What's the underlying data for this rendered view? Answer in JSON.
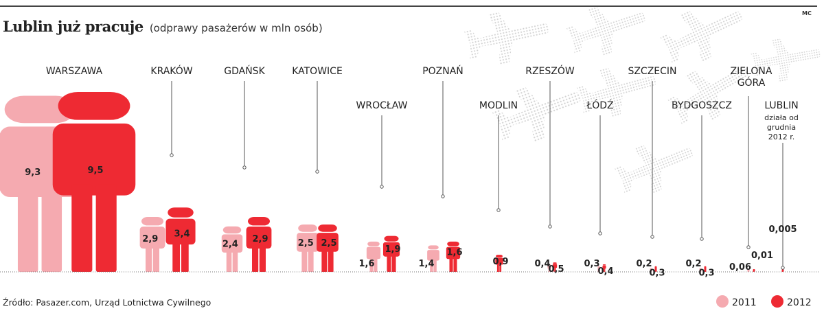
{
  "header": {
    "title": "Lublin już pracuje",
    "subtitle": "(odprawy pasażerów w mln osób)",
    "credit": "MC"
  },
  "footer": {
    "source": "Źródło: Pasazer.com, Urząd Lotnictwa Cywilnego"
  },
  "colors": {
    "y2011": "#f5aab0",
    "y2012": "#ee2a33",
    "text": "#222222",
    "dots": "#d2d2d2"
  },
  "decor": {
    "background_icon": "airplane-icon",
    "figure_icon": "person-icon"
  },
  "chart_data": {
    "type": "bar",
    "title": "Lublin już pracuje",
    "subtitle": "(odprawy pasażerów w mln osób)",
    "unit": "mln osób",
    "categories": [
      "WARSZAWA",
      "KRAKÓW",
      "GDAŃSK",
      "KATOWICE",
      "WROCŁAW",
      "POZNAŃ",
      "MODLIN",
      "RZESZÓW",
      "ŁÓDŹ",
      "SZCZECIN",
      "BYDGOSZCZ",
      "ZIELONA GÓRA",
      "LUBLIN"
    ],
    "category_labels": [
      [
        "WARSZAWA"
      ],
      [
        "KRAKÓW"
      ],
      [
        "GDAŃSK"
      ],
      [
        "KATOWICE"
      ],
      [
        "WROCŁAW"
      ],
      [
        "POZNAŃ"
      ],
      [
        "MODLIN"
      ],
      [
        "RZESZÓW"
      ],
      [
        "ŁÓDŹ"
      ],
      [
        "SZCZECIN"
      ],
      [
        "BYDGOSZCZ"
      ],
      [
        "ZIELONA",
        "GÓRA"
      ],
      [
        "LUBLIN"
      ]
    ],
    "lublin_note": [
      "działa od",
      "grudnia",
      "2012 r."
    ],
    "series": [
      {
        "name": "2011",
        "values": [
          9.3,
          2.9,
          2.4,
          2.5,
          1.6,
          1.4,
          null,
          0.4,
          0.3,
          0.2,
          0.2,
          0.06,
          null
        ]
      },
      {
        "name": "2012",
        "values": [
          9.5,
          3.4,
          2.9,
          2.5,
          1.9,
          1.6,
          0.9,
          0.5,
          0.4,
          0.3,
          0.3,
          0.01,
          0.005
        ]
      }
    ],
    "value_labels_2011": [
      "9,3",
      "2,9",
      "2,4",
      "2,5",
      "1,6",
      "1,4",
      "",
      "0,4",
      "0,3",
      "0,2",
      "0,2",
      "0,06",
      ""
    ],
    "value_labels_2012": [
      "9,5",
      "3,4",
      "2,9",
      "2,5",
      "1,9",
      "1,6",
      "0,9",
      "0,5",
      "0,4",
      "0,3",
      "0,3",
      "0,01",
      "0,005"
    ],
    "legend": [
      "2011",
      "2012"
    ],
    "legend_position": "bottom-right",
    "grid": false
  }
}
